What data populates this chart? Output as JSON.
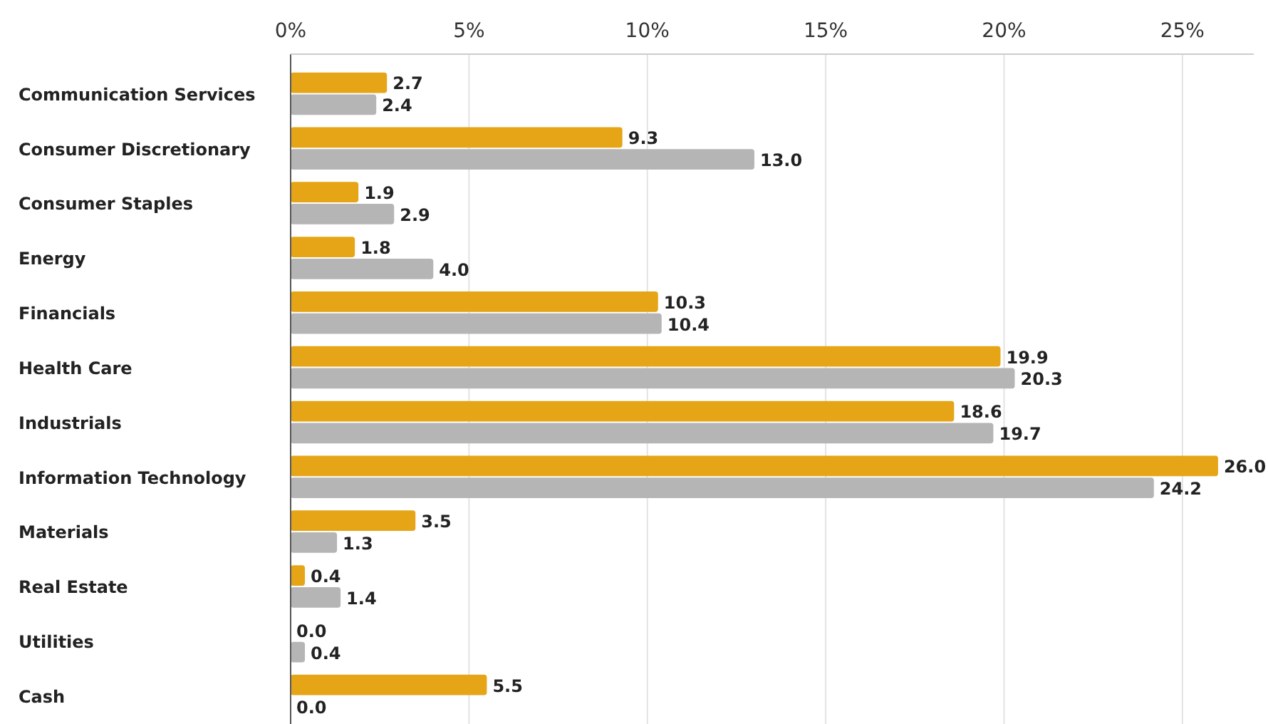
{
  "chart_data": {
    "type": "bar",
    "orientation": "horizontal",
    "categories": [
      "Communication Services",
      "Consumer Discretionary",
      "Consumer Staples",
      "Energy",
      "Financials",
      "Health Care",
      "Industrials",
      "Information Technology",
      "Materials",
      "Real Estate",
      "Utilities",
      "Cash"
    ],
    "series": [
      {
        "color": "#e5a516",
        "values": [
          2.7,
          9.3,
          1.9,
          1.8,
          10.3,
          19.9,
          18.6,
          26,
          3.5,
          0.4,
          0,
          5.5
        ],
        "value_labels": [
          "2.7",
          "9.3",
          "1.9",
          "1.8",
          "10.3",
          "19.9",
          "18.6",
          "26.0",
          "3.5",
          "0.4",
          "0.0",
          "5.5"
        ]
      },
      {
        "color": "#b5b5b5",
        "values": [
          2.4,
          13,
          2.9,
          4,
          10.4,
          20.3,
          19.7,
          24.2,
          1.3,
          1.4,
          0.4,
          0
        ],
        "value_labels": [
          "2.4",
          "13.0",
          "2.9",
          "4.0",
          "10.4",
          "20.3",
          "19.7",
          "24.2",
          "1.3",
          "1.4",
          "0.4",
          "0.0"
        ]
      }
    ],
    "xlim": [
      0,
      27
    ],
    "xticks": [
      {
        "value": 0,
        "label": "0%"
      },
      {
        "value": 5,
        "label": "5%"
      },
      {
        "value": 10,
        "label": "10%"
      },
      {
        "value": 15,
        "label": "15%"
      },
      {
        "value": 20,
        "label": "20%"
      },
      {
        "value": 25,
        "label": "25%"
      }
    ],
    "grid": "x"
  }
}
